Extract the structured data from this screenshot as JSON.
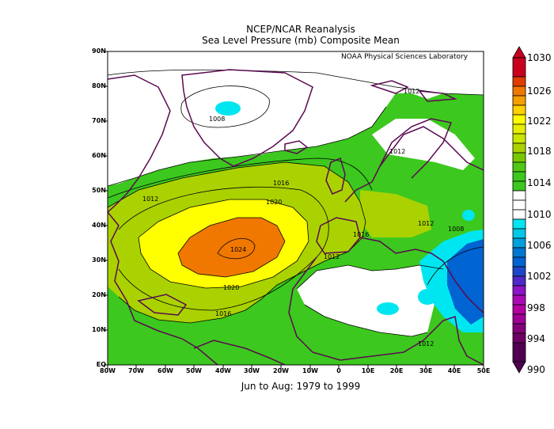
{
  "header": {
    "title_line1": "NCEP/NCAR Reanalysis",
    "title_line2": "Sea Level Pressure (mb) Composite Mean",
    "credit": "NOAA Physical Sciences Laboratory"
  },
  "footer": {
    "period": "Jun to Aug: 1979 to 1999"
  },
  "axes": {
    "lat_labels": [
      "90N",
      "80N",
      "70N",
      "60N",
      "50N",
      "40N",
      "30N",
      "20N",
      "10N",
      "EQ"
    ],
    "lon_labels": [
      "80W",
      "70W",
      "60W",
      "50W",
      "40W",
      "30W",
      "20W",
      "10W",
      "0",
      "10E",
      "20E",
      "30E",
      "40E",
      "50E"
    ]
  },
  "colorbar": {
    "labels": [
      "1030",
      "1026",
      "1022",
      "1018",
      "1014",
      "1010",
      "1006",
      "1002",
      "998",
      "994",
      "990"
    ],
    "colors": {
      "c1030": "#c8001e",
      "c1026": "#f07800",
      "c1022": "#ffff00",
      "c1018": "#aad200",
      "c1014": "#3cc81e",
      "c1010": "#ffffff",
      "c1006": "#00e6f0",
      "c1002": "#0064d2",
      "c998": "#8c14c8",
      "c994": "#a00096",
      "c990": "#500050"
    }
  },
  "contour_labels": {
    "l1008_green": "1008",
    "l1012_arctic": "1012",
    "l1012_scand": "1012",
    "l1016_w": "1016",
    "l1020_n": "1020",
    "l1012_nw": "1012",
    "l1024": "1024",
    "l1016_eur": "1016",
    "l1012_med": "1012",
    "l1012_gr": "1012",
    "l1008_me": "1008",
    "l1020_s": "1020",
    "l1016_s": "1016",
    "l1012_af": "1012"
  }
}
